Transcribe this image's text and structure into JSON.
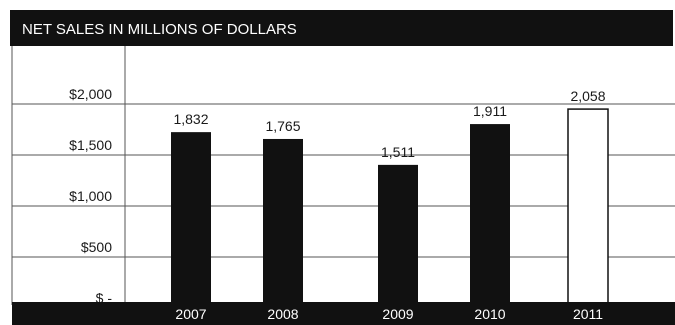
{
  "chart_data": {
    "type": "bar",
    "title": "NET SALES IN MILLIONS OF DOLLARS",
    "categories": [
      "2007",
      "2008",
      "2009",
      "2010",
      "2011"
    ],
    "values": [
      1832,
      1765,
      1511,
      1911,
      2058
    ],
    "value_labels": [
      "1,832",
      "1,765",
      "1,511",
      "1,911",
      "2,058"
    ],
    "highlight_last": true,
    "ylim": [
      0,
      2000
    ],
    "yticks": [
      {
        "value": 2000,
        "label": "$2,000"
      },
      {
        "value": 1500,
        "label": "$1,500"
      },
      {
        "value": 1000,
        "label": "$1,000"
      },
      {
        "value": 500,
        "label": "$500"
      },
      {
        "value": 0,
        "label": "$ -"
      }
    ],
    "grid": true,
    "colors": {
      "bar": "#111111",
      "bar_highlight": "#ffffff",
      "band": "#111111",
      "grid": "#555555"
    }
  }
}
